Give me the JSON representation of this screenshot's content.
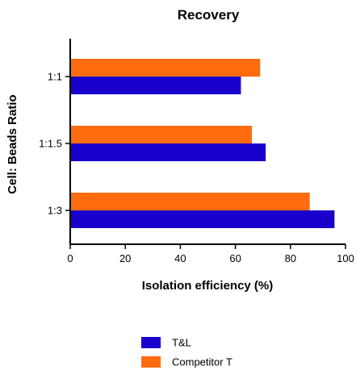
{
  "chart_data": {
    "type": "bar",
    "orientation": "horizontal",
    "title": "Recovery",
    "xlabel": "Isolation efficiency (%)",
    "ylabel": "Cell: Beads Ratio",
    "categories": [
      "1:1",
      "1:1.5",
      "1:3"
    ],
    "series": [
      {
        "name": "Competitor T",
        "values": [
          69,
          66,
          87
        ],
        "color": "#FF6B0E"
      },
      {
        "name": "T&L",
        "values": [
          62,
          71,
          96
        ],
        "color": "#1A00CC"
      }
    ],
    "xlim": [
      0,
      100
    ],
    "xticks": [
      0,
      20,
      40,
      60,
      80,
      100
    ],
    "grid": false,
    "legend_position": "bottom-center",
    "legend_order": [
      "T&L",
      "Competitor T"
    ]
  }
}
